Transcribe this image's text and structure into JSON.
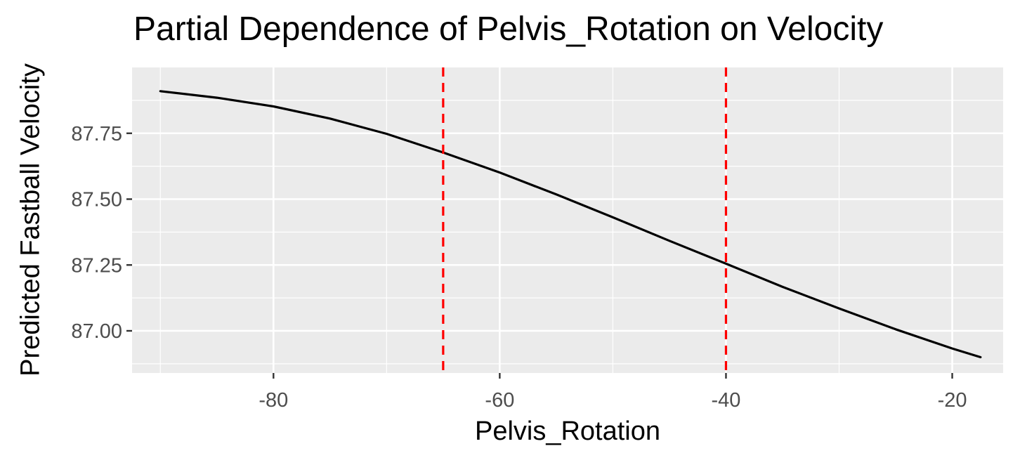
{
  "chart_data": {
    "type": "line",
    "title": "Partial Dependence of Pelvis_Rotation on Velocity",
    "xlabel": "Pelvis_Rotation",
    "ylabel": "Predicted Fastball Velocity",
    "xlim": [
      -92.5,
      -15.5
    ],
    "ylim": [
      86.84,
      88.0
    ],
    "x_ticks": [
      -80,
      -60,
      -40,
      -20
    ],
    "x_tick_labels": [
      "-80",
      "-60",
      "-40",
      "-20"
    ],
    "y_ticks": [
      87.0,
      87.25,
      87.5,
      87.75
    ],
    "y_tick_labels": [
      "87.00",
      "87.25",
      "87.50",
      "87.75"
    ],
    "grid": true,
    "legend": "none",
    "series": [
      {
        "x": [
          -90,
          -85,
          -80,
          -75,
          -70,
          -65,
          -60,
          -55,
          -50,
          -45,
          -40,
          -35,
          -30,
          -25,
          -20,
          -17.5
        ],
        "y": [
          87.91,
          87.885,
          87.852,
          87.806,
          87.748,
          87.677,
          87.601,
          87.518,
          87.431,
          87.342,
          87.255,
          87.167,
          87.085,
          87.006,
          86.933,
          86.9
        ]
      }
    ],
    "vlines": [
      {
        "x": -65
      },
      {
        "x": -40
      }
    ],
    "colors": {
      "panel_background": "#EBEBEB",
      "grid": "#FFFFFF",
      "line": "#000000",
      "reference_lines": "#FF0000",
      "tick_labels": "#4D4D4D",
      "axis_ticks": "#333333"
    }
  }
}
